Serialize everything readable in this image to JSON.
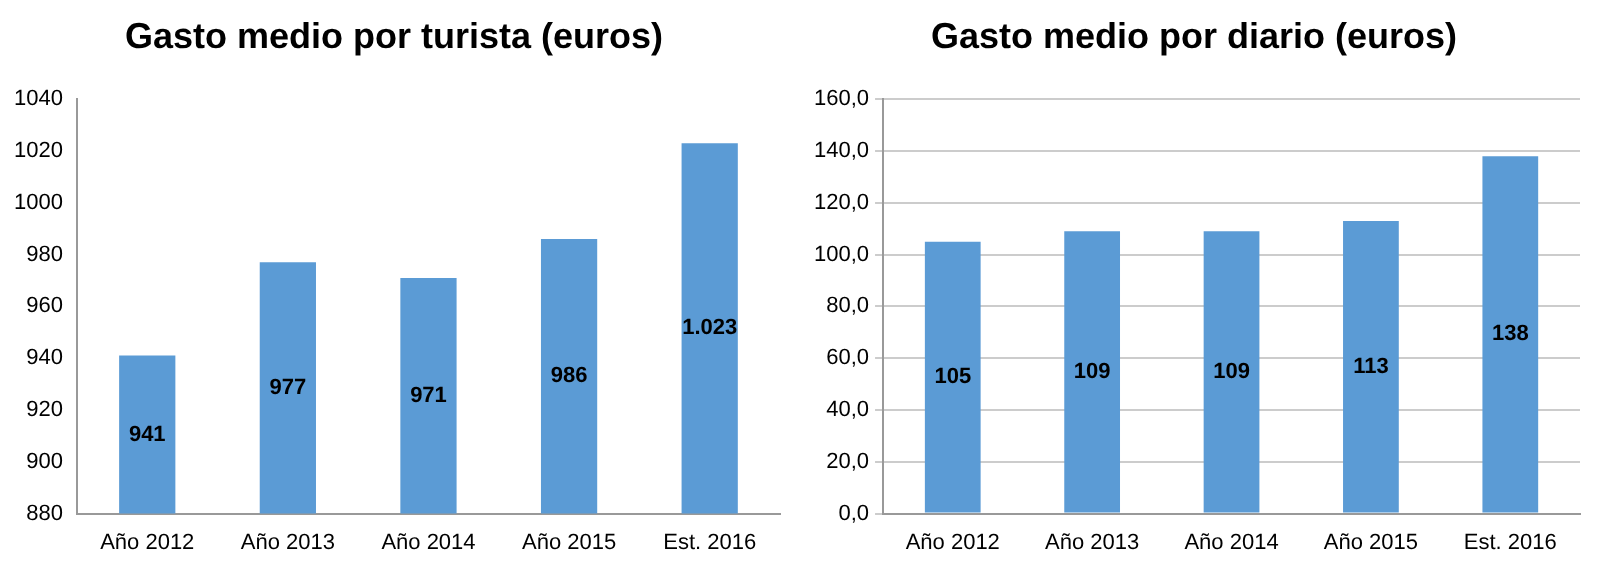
{
  "chart_data": [
    {
      "type": "bar",
      "title": "Gasto medio por turista (euros)",
      "categories": [
        "Año 2012",
        "Año 2013",
        "Año 2014",
        "Año 2015",
        "Est. 2016"
      ],
      "values": [
        941,
        977,
        971,
        986,
        1023
      ],
      "value_labels": [
        "941",
        "977",
        "971",
        "986",
        "1.023"
      ],
      "color": "#5b9bd5",
      "ylim": [
        880,
        1040
      ],
      "yticks": [
        880,
        900,
        920,
        940,
        960,
        980,
        1000,
        1020,
        1040
      ],
      "grid": false
    },
    {
      "type": "bar",
      "title": "Gasto medio por diario (euros)",
      "categories": [
        "Año 2012",
        "Año 2013",
        "Año 2014",
        "Año 2015",
        "Est. 2016"
      ],
      "values": [
        105,
        109,
        109,
        113,
        138
      ],
      "data_labels": true,
      "color": "#5b9bd5",
      "ylim": [
        0,
        160
      ],
      "yticks": [
        {
          "value": 0,
          "label": "0,0"
        },
        {
          "value": 20,
          "label": "20,0"
        },
        {
          "value": 40,
          "label": "40,0"
        },
        {
          "value": 60,
          "label": "60,0"
        },
        {
          "value": 80,
          "label": "80,0"
        },
        {
          "value": 100,
          "label": "100,0"
        },
        {
          "value": 120,
          "label": "120,0"
        },
        {
          "value": 140,
          "label": "140,0"
        },
        {
          "value": 160,
          "label": "160,0"
        }
      ],
      "grid": "y"
    }
  ]
}
